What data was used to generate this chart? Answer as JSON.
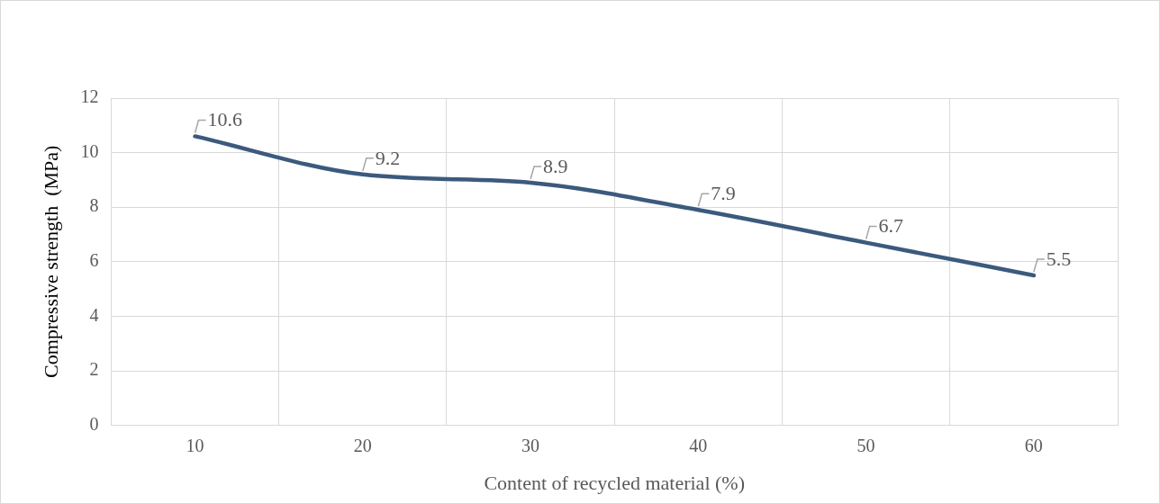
{
  "chart_data": {
    "type": "line",
    "categories": [
      "10",
      "20",
      "30",
      "40",
      "50",
      "60"
    ],
    "series": [
      {
        "color": "#3b5a7d",
        "values": [
          10.6,
          9.2,
          8.9,
          7.9,
          6.7,
          5.5
        ]
      }
    ],
    "xlabel": "Content of recycled material (%)",
    "ylabel": "Compressive strength  (MPa)",
    "ylim": [
      0,
      12
    ],
    "yticks": [
      0,
      2,
      4,
      6,
      8,
      10,
      12
    ],
    "grid": true,
    "legend": false,
    "marker": "none",
    "line_style": "solid",
    "data_labels": true
  }
}
